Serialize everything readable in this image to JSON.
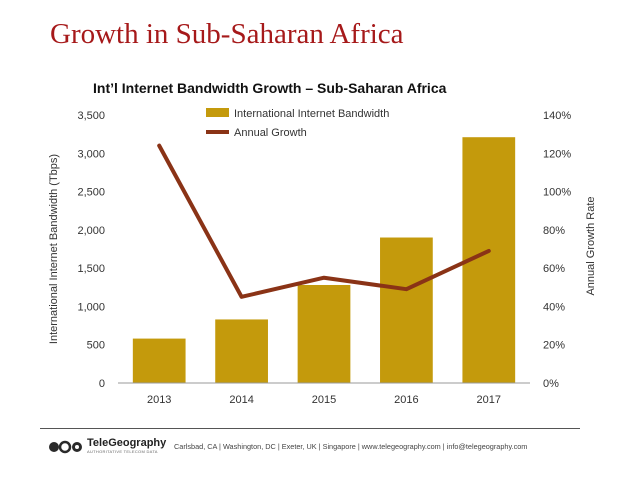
{
  "slide": {
    "title": "Growth in Sub-Saharan Africa"
  },
  "chart_data": {
    "type": "bar",
    "title": "Int’l Internet Bandwidth Growth – Sub-Saharan Africa",
    "categories": [
      "2013",
      "2014",
      "2015",
      "2016",
      "2017"
    ],
    "series": [
      {
        "name": "International Internet Bandwidth",
        "type": "bar",
        "axis": "left",
        "color": "#c49a0c",
        "values": [
          580,
          830,
          1280,
          1900,
          3210
        ]
      },
      {
        "name": "Annual Growth",
        "type": "line",
        "axis": "right",
        "color": "#8a3316",
        "values": [
          124,
          45,
          55,
          49,
          69
        ]
      }
    ],
    "y_left": {
      "label": "International Internet Bandwidth (Tbps)",
      "range": [
        0,
        3500
      ],
      "ticks": [
        "0",
        "500",
        "1,000",
        "1,500",
        "2,000",
        "2,500",
        "3,000",
        "3,500"
      ]
    },
    "y_right": {
      "label": "Annual Growth Rate",
      "range": [
        0,
        140
      ],
      "ticks": [
        "0%",
        "20%",
        "40%",
        "60%",
        "80%",
        "100%",
        "120%",
        "140%"
      ]
    },
    "grid": false,
    "legend": "top"
  },
  "footer": {
    "logo_name": "TeleGeography",
    "logo_tagline": "AUTHORITATIVE TELECOM DATA",
    "text": "Carlsbad, CA | Washington, DC | Exeter, UK | Singapore | www.telegeography.com | info@telegeography.com"
  }
}
